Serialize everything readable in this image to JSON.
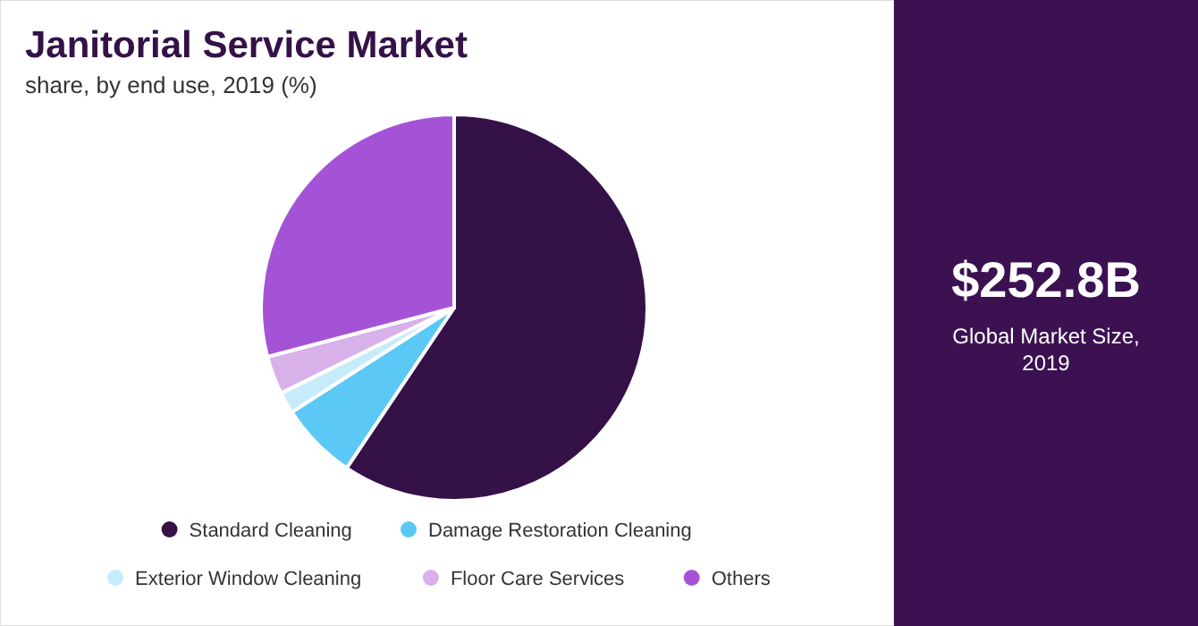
{
  "chart_data": {
    "type": "pie",
    "title": "Janitorial Service Market",
    "subtitle": "share, by end use, 2019 (%)",
    "categories": [
      "Standard Cleaning",
      "Damage Restoration Cleaning",
      "Exterior Window Cleaning",
      "Floor Care Services",
      "Others"
    ],
    "values": [
      59.4,
      6.5,
      1.8,
      3.2,
      29.1
    ],
    "colors": [
      "#341147",
      "#5bc8f5",
      "#c6ecfb",
      "#d8b0ea",
      "#a553d6"
    ],
    "legend": "bottom",
    "annotations": [
      "$252.8B",
      "Global Market Size, 2019"
    ]
  }
}
